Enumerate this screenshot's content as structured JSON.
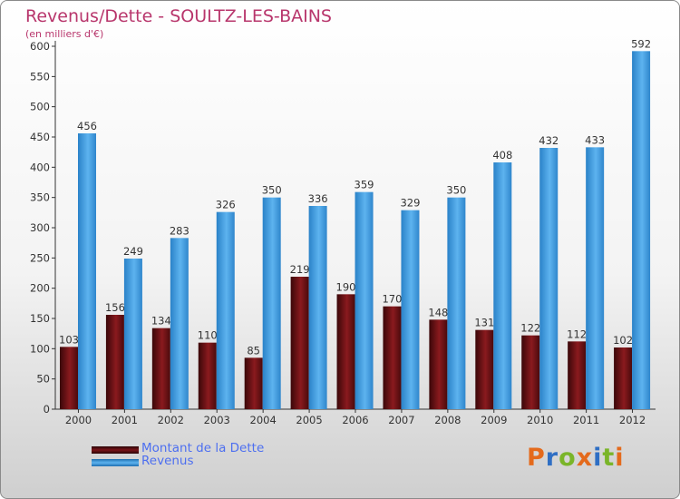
{
  "chart_data": {
    "type": "bar",
    "title": "Revenus/Dette - SOULTZ-LES-BAINS",
    "subtitle": "(en milliers d'€)",
    "categories": [
      "2000",
      "2001",
      "2002",
      "2003",
      "2004",
      "2005",
      "2006",
      "2007",
      "2008",
      "2009",
      "2010",
      "2011",
      "2012"
    ],
    "series": [
      {
        "name": "Montant de la Dette",
        "color": "#7a1418",
        "values": [
          103,
          156,
          134,
          110,
          85,
          219,
          190,
          170,
          148,
          131,
          122,
          112,
          102
        ]
      },
      {
        "name": "Revenus",
        "color": "#4aa3e3",
        "values": [
          456,
          249,
          283,
          326,
          350,
          336,
          359,
          329,
          350,
          408,
          432,
          433,
          592
        ]
      }
    ],
    "ylim": [
      0,
      600
    ],
    "yticks": [
      0,
      50,
      100,
      150,
      200,
      250,
      300,
      350,
      400,
      450,
      500,
      550,
      600
    ],
    "grid": false,
    "legend_position": "bottom-left",
    "xlabel": "",
    "ylabel": ""
  },
  "legend": {
    "debt_label": "Montant de la Dette",
    "revenue_label": "Revenus"
  },
  "logo": {
    "text": "Proxiti",
    "letter_colors": [
      "#e46a1c",
      "#2f6fc4",
      "#7ab529",
      "#e46a1c",
      "#2f6fc4",
      "#7ab529",
      "#e46a1c"
    ]
  }
}
